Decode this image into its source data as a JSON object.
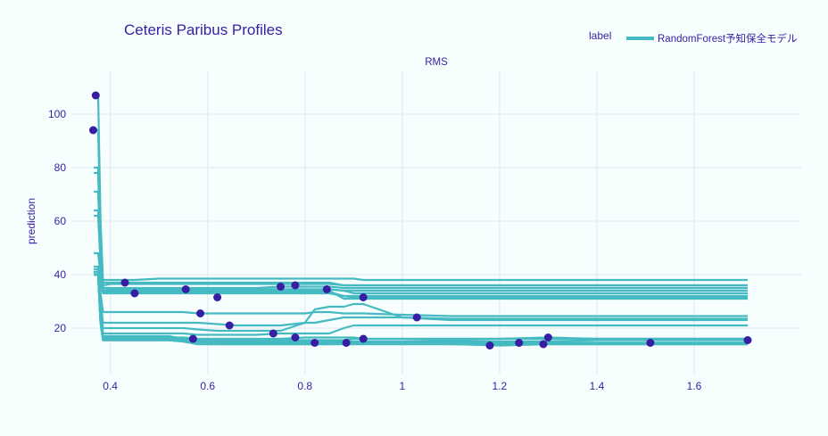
{
  "chart_data": {
    "type": "line",
    "title": "Ceteris Paribus Profiles",
    "subplot_title": "RMS",
    "xlabel": "",
    "ylabel": "prediction",
    "xlim": [
      0.32,
      1.82
    ],
    "ylim": [
      3,
      116
    ],
    "x_ticks": [
      0.4,
      0.6,
      0.8,
      1,
      1.2,
      1.4,
      1.6
    ],
    "x_tick_labels": [
      "0.4",
      "0.6",
      "0.8",
      "1",
      "1.2",
      "1.4",
      "1.6"
    ],
    "y_ticks": [
      20,
      40,
      60,
      80,
      100
    ],
    "y_tick_labels": [
      "20",
      "40",
      "60",
      "80",
      "100"
    ],
    "grid": true,
    "legend": {
      "title": "label",
      "placement": "top-right",
      "entries": [
        "RandomForest予知保全モデル"
      ]
    },
    "colors": {
      "line": "#46bac2",
      "point": "#371ea3",
      "text": "#371ea3",
      "background": "#f7fefe",
      "grid": "#e8eef2"
    },
    "x_grid_points": [
      0.366,
      0.37,
      0.375,
      0.38,
      0.385,
      0.4,
      0.45,
      0.5,
      0.52,
      0.55,
      0.58,
      0.62,
      0.66,
      0.7,
      0.75,
      0.8,
      0.82,
      0.85,
      0.88,
      0.9,
      0.92,
      1.0,
      1.1,
      1.2,
      1.3,
      1.4,
      1.5,
      1.6,
      1.71
    ],
    "series": [
      {
        "obs": [
          0.37,
          107
        ],
        "values": [
          107,
          107,
          107,
          60,
          38,
          38,
          38,
          38.5,
          38.5,
          38.5,
          38.5,
          38.5,
          38.5,
          38.5,
          38.5,
          38.5,
          38.5,
          38.5,
          38.5,
          38.5,
          38,
          38,
          38,
          38,
          38,
          38,
          38,
          38,
          38
        ]
      },
      {
        "obs": [
          0.365,
          94
        ],
        "values": [
          94,
          94,
          94,
          55,
          36,
          36.5,
          36.5,
          36.5,
          36.5,
          36.5,
          36.5,
          36.5,
          36.5,
          36.5,
          36.5,
          36.5,
          36.5,
          36.5,
          36,
          36,
          36,
          36,
          36,
          36,
          36,
          36,
          36,
          36,
          36
        ]
      },
      {
        "obs": [
          0.43,
          37
        ],
        "values": [
          80,
          80,
          80,
          50,
          37,
          37,
          37,
          37,
          37,
          37,
          37,
          37,
          37,
          37,
          37,
          37,
          37,
          37,
          36,
          36,
          36,
          36,
          36,
          36,
          36,
          36,
          36,
          36,
          36
        ]
      },
      {
        "obs": [
          0.45,
          33
        ],
        "values": [
          78,
          78,
          78,
          48,
          35,
          35,
          34.5,
          34.5,
          34.5,
          34.5,
          34.5,
          34.5,
          34.5,
          34.5,
          34.5,
          34.5,
          34.5,
          34.5,
          34,
          34,
          34,
          34,
          34,
          34,
          34,
          34,
          34,
          34,
          34
        ]
      },
      {
        "obs": [
          0.555,
          34.5
        ],
        "values": [
          71,
          71,
          71,
          46,
          34,
          34.5,
          34.5,
          34.5,
          34.5,
          34.5,
          34.5,
          34.5,
          34.5,
          34.5,
          34.5,
          34.5,
          34.5,
          34.5,
          34,
          33,
          33,
          33,
          33,
          33,
          33,
          33,
          33,
          33,
          33
        ]
      },
      {
        "obs": [
          0.62,
          31.5
        ],
        "values": [
          64,
          64,
          64,
          45,
          33.5,
          33.5,
          33.5,
          33.5,
          33.5,
          33.5,
          33.5,
          33.5,
          33.5,
          33.5,
          33.5,
          33.5,
          33.5,
          33.5,
          32,
          32,
          32,
          32,
          32,
          32,
          32,
          32,
          32,
          32,
          32
        ]
      },
      {
        "obs": [
          0.75,
          35.5
        ],
        "values": [
          62,
          62,
          62,
          44,
          35,
          35,
          35,
          35,
          35,
          35,
          35,
          35,
          35,
          35,
          35.5,
          35.5,
          35.5,
          35.5,
          35,
          35,
          35,
          35,
          35,
          35,
          35,
          35,
          35,
          35,
          35
        ]
      },
      {
        "obs": [
          0.78,
          36
        ],
        "values": [
          48,
          48,
          48,
          40,
          34,
          34,
          34,
          34,
          34,
          34,
          34,
          34,
          34,
          34,
          34,
          34,
          34,
          34,
          31,
          31,
          31,
          31,
          31,
          31,
          31,
          31,
          31,
          31,
          31
        ]
      },
      {
        "obs": [
          0.845,
          34.5
        ],
        "values": [
          43,
          43,
          43,
          38,
          33.5,
          33.5,
          33.5,
          33.5,
          33.5,
          33.5,
          33.5,
          33.5,
          33.5,
          33.5,
          33.5,
          33.5,
          33.5,
          34.5,
          34,
          34,
          34,
          34,
          34,
          34,
          34,
          34,
          34,
          34,
          34
        ]
      },
      {
        "obs": [
          0.92,
          31.5
        ],
        "values": [
          42,
          42,
          42,
          37,
          33,
          33,
          33,
          33,
          33,
          33,
          33,
          33,
          33,
          33,
          33,
          33,
          33,
          33,
          32,
          31.5,
          31.5,
          31.5,
          31.5,
          31.5,
          31.5,
          31.5,
          31.5,
          31.5,
          31.5
        ]
      },
      {
        "obs": [
          0.585,
          25.5
        ],
        "values": [
          41,
          41,
          41,
          33,
          26,
          26,
          26,
          26,
          26,
          26,
          25.5,
          25.5,
          25.5,
          25.5,
          25.5,
          25.5,
          26,
          26,
          25.5,
          25.5,
          25.5,
          25,
          24.5,
          24.5,
          24.5,
          24.5,
          24.5,
          24.5,
          24.5
        ]
      },
      {
        "obs": [
          0.645,
          21
        ],
        "values": [
          41,
          41,
          41,
          30,
          22,
          22,
          22,
          22,
          22,
          22,
          22,
          21.5,
          21,
          21,
          21,
          22,
          22,
          23,
          24,
          24,
          24,
          24,
          23.5,
          23.5,
          23.5,
          23.5,
          23.5,
          23.5,
          23.5
        ]
      },
      {
        "obs": [
          1.03,
          24
        ],
        "values": [
          40,
          40,
          40,
          28,
          20,
          20,
          20,
          20,
          20,
          20,
          19.5,
          19,
          19,
          19,
          19,
          22,
          27,
          28,
          28,
          29,
          29,
          24,
          23,
          23,
          23,
          23,
          23,
          23,
          23
        ]
      },
      {
        "obs": [
          0.735,
          18
        ],
        "values": [
          40,
          40,
          40,
          26,
          18,
          18,
          18,
          18,
          18,
          18,
          17.5,
          17.5,
          17.5,
          17.5,
          18,
          18,
          18,
          18,
          20,
          21,
          21,
          21,
          21,
          21,
          21,
          21,
          21,
          21,
          21
        ]
      },
      {
        "obs": [
          0.57,
          16
        ],
        "values": [
          40,
          40,
          40,
          24,
          17,
          17,
          17,
          17,
          17,
          16,
          14.5,
          14,
          14,
          14,
          14,
          14,
          14,
          14,
          14,
          14,
          14,
          14,
          14,
          14,
          14,
          14,
          14,
          14,
          14
        ]
      },
      {
        "obs": [
          0.78,
          16.5
        ],
        "values": [
          40,
          40,
          40,
          22,
          16.5,
          16.5,
          16.5,
          16.5,
          16.5,
          16.5,
          16,
          16,
          16,
          16,
          16,
          16.5,
          16.5,
          16.5,
          16.5,
          16.5,
          16,
          16,
          16,
          16,
          16,
          16,
          16,
          16,
          16
        ]
      },
      {
        "obs": [
          0.82,
          14.5
        ],
        "values": [
          40,
          40,
          40,
          22,
          16,
          16,
          16,
          16,
          16,
          15.5,
          15,
          14.5,
          14.5,
          14.5,
          14.5,
          14.5,
          14.5,
          14.5,
          14.5,
          14.5,
          14.5,
          14.5,
          14.5,
          14.5,
          14.5,
          14.5,
          14.5,
          14.5,
          14.5
        ]
      },
      {
        "obs": [
          0.885,
          14.5
        ],
        "values": [
          40,
          40,
          40,
          22,
          16,
          16,
          16,
          16,
          16,
          15.5,
          15,
          15,
          15,
          15,
          15,
          15,
          15,
          15,
          14.5,
          14.5,
          14.5,
          14.5,
          14.5,
          14.5,
          14.5,
          14.5,
          14.5,
          14.5,
          14.5
        ]
      },
      {
        "obs": [
          0.92,
          16
        ],
        "values": [
          40,
          40,
          40,
          22,
          16,
          16,
          16,
          16,
          16,
          16,
          15.5,
          15.5,
          15.5,
          15.5,
          15.5,
          15.5,
          15.5,
          15.5,
          15.5,
          16,
          16,
          16,
          16,
          16,
          16,
          16,
          16,
          16,
          16
        ]
      },
      {
        "obs": [
          1.18,
          13.5
        ],
        "values": [
          40,
          40,
          40,
          22,
          15.5,
          15.5,
          15.5,
          15.5,
          15.5,
          15,
          14,
          14,
          14,
          14,
          14,
          14,
          14,
          14,
          14,
          14,
          14,
          14,
          14,
          13.5,
          14,
          14,
          14,
          14,
          14
        ]
      },
      {
        "obs": [
          1.24,
          14.5
        ],
        "values": [
          40,
          40,
          40,
          22,
          15.5,
          15.5,
          15.5,
          15.5,
          15.5,
          15,
          14,
          14,
          14,
          14,
          14,
          14,
          14,
          14,
          14.5,
          14.5,
          14.5,
          14.5,
          14.5,
          14.5,
          14.5,
          14.5,
          14.5,
          14.5,
          14.5
        ]
      },
      {
        "obs": [
          1.29,
          14
        ],
        "values": [
          40,
          40,
          40,
          22,
          16,
          16,
          16,
          16,
          16,
          15,
          14.5,
          14.5,
          14.5,
          14.5,
          14.5,
          14.5,
          14.5,
          14.5,
          14.5,
          14.5,
          14.5,
          14.5,
          14,
          14,
          14,
          14,
          14,
          14,
          14
        ]
      },
      {
        "obs": [
          1.3,
          16.5
        ],
        "values": [
          40,
          40,
          40,
          22,
          16,
          16,
          16,
          16,
          16,
          16,
          15,
          15,
          15,
          15,
          15,
          15,
          15,
          15,
          15,
          15,
          15,
          15,
          15.5,
          16,
          16.5,
          16,
          16,
          16,
          16
        ]
      },
      {
        "obs": [
          1.51,
          14.5
        ],
        "values": [
          40,
          40,
          40,
          22,
          15.5,
          15.5,
          15.5,
          15.5,
          15.5,
          15,
          14.5,
          14.5,
          14.5,
          14.5,
          14.5,
          14.5,
          14.5,
          14.5,
          14.5,
          14.5,
          14.5,
          14.5,
          14.5,
          14.5,
          14.5,
          14.5,
          14.5,
          14.5,
          14.5
        ]
      },
      {
        "obs": [
          1.71,
          15.5
        ],
        "values": [
          40,
          40,
          40,
          22,
          15.5,
          15.5,
          15.5,
          15.5,
          15.5,
          15.5,
          14.5,
          14.5,
          14.5,
          14.5,
          14.5,
          15,
          15,
          15,
          15,
          15,
          15,
          15,
          15,
          15,
          15,
          15.5,
          15.5,
          15.5,
          15.5
        ]
      }
    ]
  }
}
